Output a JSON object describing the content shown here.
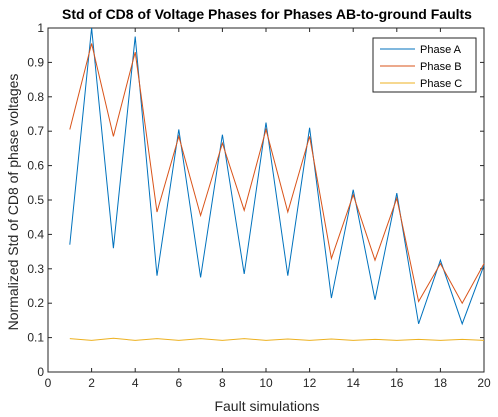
{
  "chart_data": {
    "type": "line",
    "title": "Std of CD8 of Voltage Phases for Phases AB-to-ground Faults",
    "xlabel": "Fault simulations",
    "ylabel": "Normalized Std of CD8 of phase voltages",
    "xlim": [
      0,
      20
    ],
    "ylim": [
      0,
      1
    ],
    "xticks": [
      0,
      2,
      4,
      6,
      8,
      10,
      12,
      14,
      16,
      18,
      20
    ],
    "yticks": [
      0,
      0.1,
      0.2,
      0.3,
      0.4,
      0.5,
      0.6,
      0.7,
      0.8,
      0.9,
      1
    ],
    "grid": false,
    "legend_location": "top-right",
    "x": [
      1,
      2,
      3,
      4,
      5,
      6,
      7,
      8,
      9,
      10,
      11,
      12,
      13,
      14,
      15,
      16,
      17,
      18,
      19,
      20
    ],
    "series": [
      {
        "name": "Phase A",
        "color": "#0072BD",
        "values": [
          0.37,
          1.0,
          0.36,
          0.975,
          0.28,
          0.705,
          0.275,
          0.69,
          0.285,
          0.725,
          0.28,
          0.71,
          0.215,
          0.53,
          0.21,
          0.52,
          0.14,
          0.325,
          0.14,
          0.31
        ]
      },
      {
        "name": "Phase B",
        "color": "#D95319",
        "values": [
          0.705,
          0.955,
          0.685,
          0.93,
          0.465,
          0.685,
          0.455,
          0.665,
          0.47,
          0.705,
          0.465,
          0.685,
          0.33,
          0.515,
          0.325,
          0.505,
          0.205,
          0.315,
          0.2,
          0.315
        ]
      },
      {
        "name": "Phase C",
        "color": "#EDB120",
        "values": [
          0.097,
          0.092,
          0.098,
          0.092,
          0.097,
          0.092,
          0.097,
          0.092,
          0.097,
          0.092,
          0.096,
          0.092,
          0.096,
          0.092,
          0.095,
          0.092,
          0.095,
          0.092,
          0.095,
          0.092
        ]
      }
    ]
  }
}
